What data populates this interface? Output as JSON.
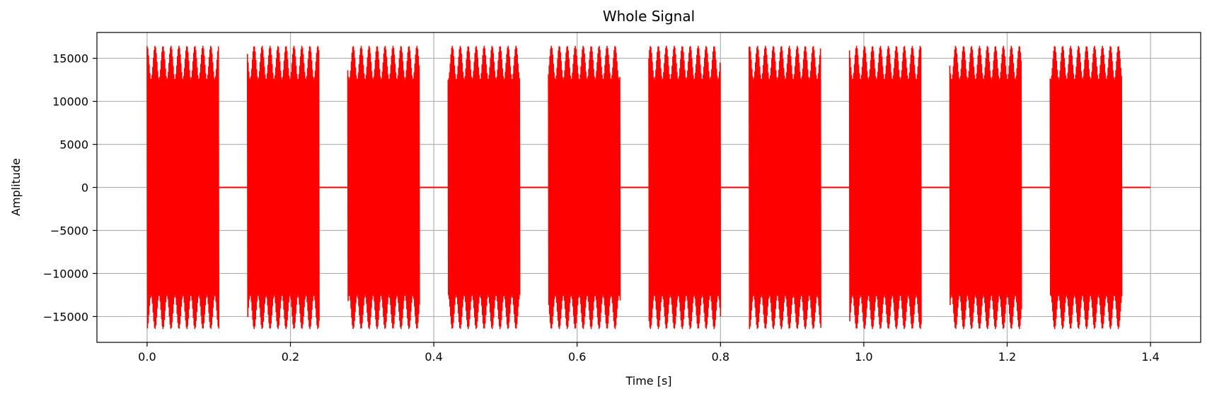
{
  "chart_data": {
    "type": "line",
    "title": "Whole Signal",
    "xlabel": "Time [s]",
    "ylabel": "Amplitude",
    "xlim": [
      -0.07,
      1.47
    ],
    "ylim": [
      -18000,
      18000
    ],
    "xticks": [
      0.0,
      0.2,
      0.4,
      0.6,
      0.8,
      1.0,
      1.2,
      1.4
    ],
    "xtick_labels": [
      "0.0",
      "0.2",
      "0.4",
      "0.6",
      "0.8",
      "1.0",
      "1.2",
      "1.4"
    ],
    "yticks": [
      -15000,
      -10000,
      -5000,
      0,
      5000,
      10000,
      15000
    ],
    "ytick_labels": [
      "−15000",
      "−10000",
      "−5000",
      "0",
      "5000",
      "10000",
      "15000"
    ],
    "grid": true,
    "series": [
      {
        "color": "#ff0000",
        "bursts": [
          {
            "start": 0.0,
            "end": 0.1,
            "max": 16400,
            "min": -16400
          },
          {
            "start": 0.14,
            "end": 0.24,
            "max": 16400,
            "min": -16400
          },
          {
            "start": 0.28,
            "end": 0.38,
            "max": 16400,
            "min": -16400
          },
          {
            "start": 0.42,
            "end": 0.52,
            "max": 16400,
            "min": -16400
          },
          {
            "start": 0.56,
            "end": 0.66,
            "max": 16400,
            "min": -16400
          },
          {
            "start": 0.7,
            "end": 0.8,
            "max": 16400,
            "min": -16400
          },
          {
            "start": 0.84,
            "end": 0.94,
            "max": 16400,
            "min": -16400
          },
          {
            "start": 0.98,
            "end": 1.08,
            "max": 16400,
            "min": -16400
          },
          {
            "start": 1.12,
            "end": 1.22,
            "max": 16400,
            "min": -16400
          },
          {
            "start": 1.26,
            "end": 1.36,
            "max": 16400,
            "min": -16400
          }
        ],
        "silence_value": 0,
        "signal_end": 1.4
      }
    ]
  }
}
